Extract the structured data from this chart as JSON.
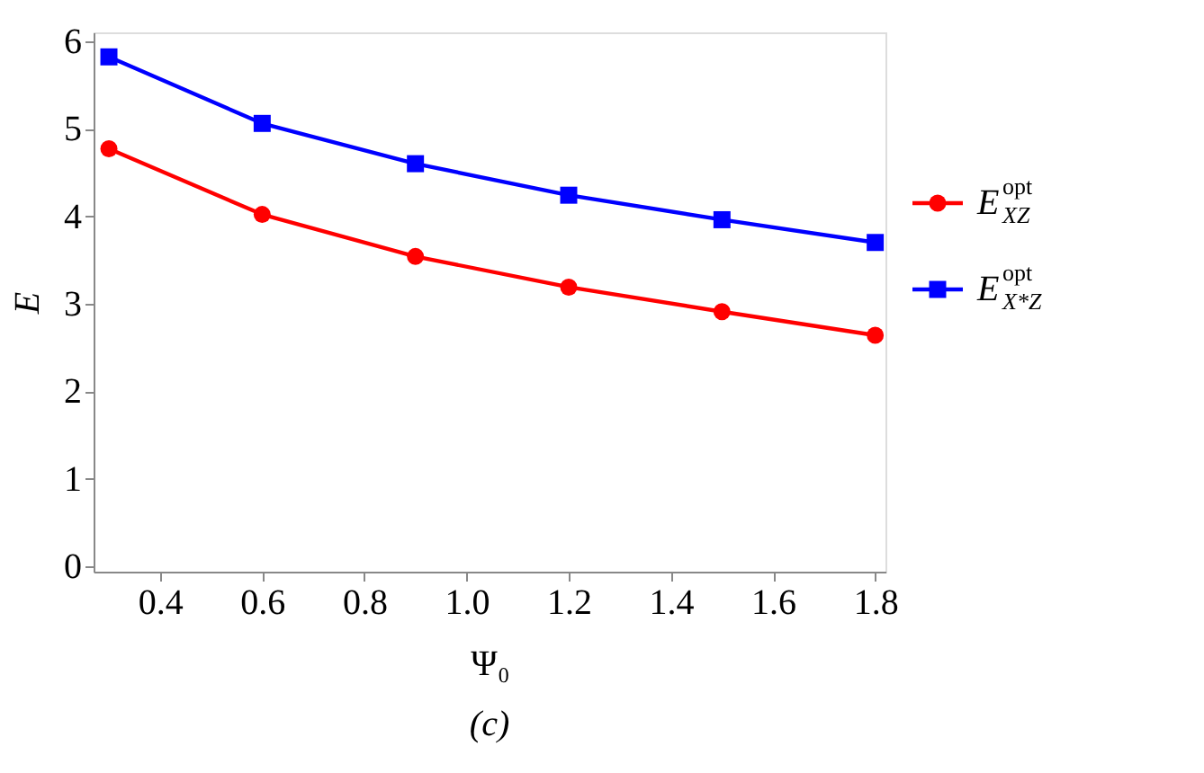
{
  "chart_data": {
    "type": "line",
    "xlabel": "Ψ₀",
    "ylabel": "E",
    "x": [
      0.3,
      0.6,
      0.9,
      1.2,
      1.5,
      1.8
    ],
    "series": [
      {
        "name": "E$^{opt}$$_{XZ}$",
        "color": "#ff0000",
        "marker": "circle",
        "values": [
          4.77,
          4.02,
          3.54,
          3.19,
          2.91,
          2.64
        ]
      },
      {
        "name": "E$^{opt}$$_{X*Z}$",
        "color": "#0000ff",
        "marker": "square",
        "values": [
          5.82,
          5.06,
          4.6,
          4.24,
          3.96,
          3.7
        ]
      }
    ],
    "xlim": [
      0.27,
      1.82
    ],
    "ylim": [
      -0.06,
      6.1
    ],
    "xticks": [
      {
        "value": 0.4,
        "label": "0.4"
      },
      {
        "value": 0.6,
        "label": "0.6"
      },
      {
        "value": 0.8,
        "label": "0.8"
      },
      {
        "value": 1.0,
        "label": "1.0"
      },
      {
        "value": 1.2,
        "label": "1.2"
      },
      {
        "value": 1.4,
        "label": "1.4"
      },
      {
        "value": 1.6,
        "label": "1.6"
      },
      {
        "value": 1.8,
        "label": "1.8"
      }
    ],
    "yticks": [
      0,
      1,
      2,
      3,
      4,
      5,
      6
    ],
    "grid": false,
    "legend": "right",
    "line_style": "solid",
    "annotations": [
      "(c)"
    ]
  }
}
